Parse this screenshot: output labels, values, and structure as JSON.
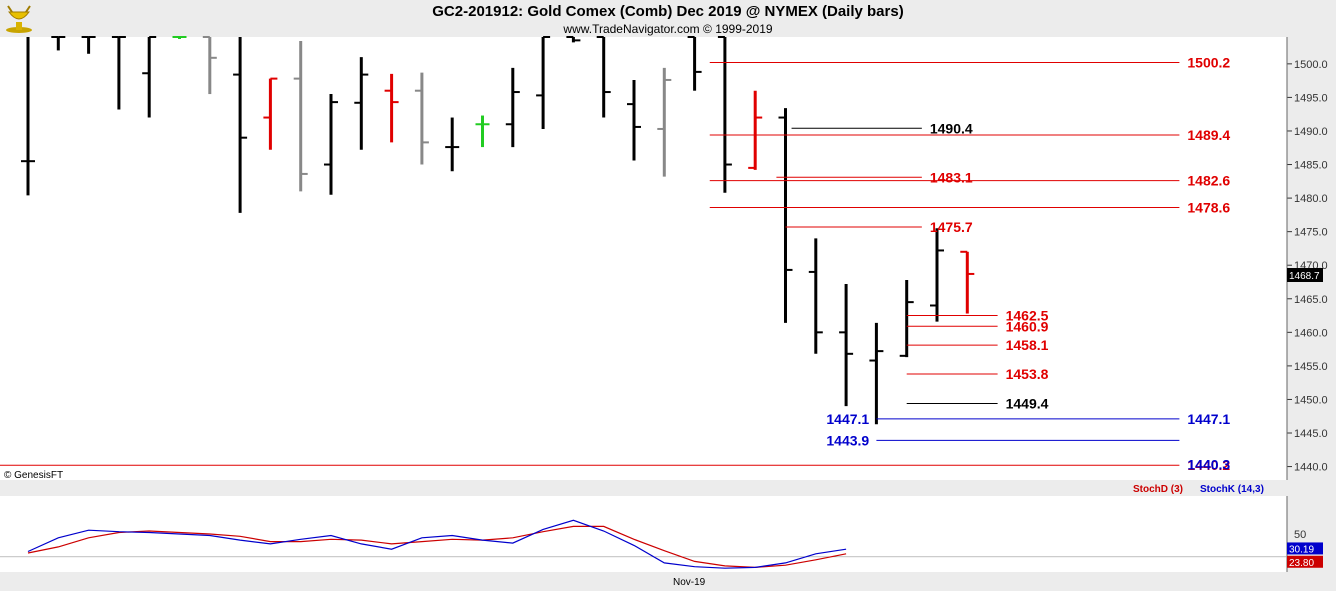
{
  "header": {
    "title": "GC2-201912:  Gold Comex (Comb) Dec 2019 @ NYMEX  (Daily bars)",
    "subtitle": "www.TradeNavigator.com © 1999-2019",
    "logo_icon": "gold-bull-trophy-icon"
  },
  "copyright": "© GenesisFT",
  "last_price_tag": "1468.7",
  "colors": {
    "red": "#e00000",
    "blue": "#0000cc",
    "black": "#000000",
    "gray": "#888888",
    "green": "#22cc22"
  },
  "chart_data": {
    "type": "bar",
    "ylim": [
      1438,
      1504
    ],
    "y_ticks": [
      "1500.0",
      "1495.0",
      "1490.0",
      "1485.0",
      "1480.0",
      "1475.0",
      "1470.0",
      "1465.0",
      "1460.0",
      "1455.0",
      "1450.0",
      "1445.0",
      "1440.0"
    ],
    "x_label": "Nov-19",
    "bars": [
      {
        "h": 1504,
        "l": 1480.4,
        "o": 1485.5,
        "c": 1485.5,
        "color": "black"
      },
      {
        "h": 1504,
        "l": 1502,
        "o": 1504,
        "c": 1504,
        "color": "black"
      },
      {
        "h": 1504,
        "l": 1501.5,
        "o": 1504,
        "c": 1504,
        "color": "black"
      },
      {
        "h": 1504,
        "l": 1493.2,
        "o": 1504,
        "c": 1504,
        "color": "black"
      },
      {
        "h": 1504,
        "l": 1492,
        "o": 1498.6,
        "c": 1504,
        "color": "black"
      },
      {
        "h": 1504,
        "l": 1503.7,
        "o": 1504,
        "c": 1504,
        "color": "green"
      },
      {
        "h": 1504,
        "l": 1495.5,
        "o": 1504,
        "c": 1500.9,
        "color": "gray"
      },
      {
        "h": 1504,
        "l": 1477.8,
        "o": 1498.4,
        "c": 1489,
        "color": "black"
      },
      {
        "h": 1497.8,
        "l": 1487.2,
        "o": 1492,
        "c": 1497.8,
        "color": "red"
      },
      {
        "h": 1503.4,
        "l": 1481,
        "o": 1497.8,
        "c": 1483.6,
        "color": "gray"
      },
      {
        "h": 1495.5,
        "l": 1480.5,
        "o": 1485,
        "c": 1494.3,
        "color": "black"
      },
      {
        "h": 1501,
        "l": 1487.2,
        "o": 1494.2,
        "c": 1498.4,
        "color": "black"
      },
      {
        "h": 1498.5,
        "l": 1488.3,
        "o": 1496,
        "c": 1494.3,
        "color": "red"
      },
      {
        "h": 1498.7,
        "l": 1485,
        "o": 1496,
        "c": 1488.3,
        "color": "gray"
      },
      {
        "h": 1492,
        "l": 1484,
        "o": 1487.6,
        "c": 1487.6,
        "color": "black"
      },
      {
        "h": 1492.3,
        "l": 1487.6,
        "o": 1491,
        "c": 1491,
        "color": "green"
      },
      {
        "h": 1499.4,
        "l": 1487.6,
        "o": 1491,
        "c": 1495.8,
        "color": "black"
      },
      {
        "h": 1504,
        "l": 1490.3,
        "o": 1495.3,
        "c": 1504,
        "color": "black"
      },
      {
        "h": 1504,
        "l": 1503.2,
        "o": 1504,
        "c": 1503.5,
        "color": "black"
      },
      {
        "h": 1504,
        "l": 1492,
        "o": 1504,
        "c": 1495.8,
        "color": "black"
      },
      {
        "h": 1497.6,
        "l": 1485.6,
        "o": 1494,
        "c": 1490.6,
        "color": "black"
      },
      {
        "h": 1499.4,
        "l": 1483.2,
        "o": 1490.3,
        "c": 1497.6,
        "color": "gray"
      },
      {
        "h": 1504,
        "l": 1496,
        "o": 1504,
        "c": 1498.8,
        "color": "black"
      },
      {
        "h": 1504,
        "l": 1480.8,
        "o": 1504,
        "c": 1485,
        "color": "black"
      },
      {
        "h": 1496,
        "l": 1484.2,
        "o": 1484.5,
        "c": 1492,
        "color": "red"
      },
      {
        "h": 1493.4,
        "l": 1461.4,
        "o": 1492,
        "c": 1469.3,
        "color": "black"
      },
      {
        "h": 1474,
        "l": 1456.8,
        "o": 1469,
        "c": 1460,
        "color": "black"
      },
      {
        "h": 1467.2,
        "l": 1449,
        "o": 1460,
        "c": 1456.8,
        "color": "black"
      },
      {
        "h": 1461.4,
        "l": 1446.3,
        "o": 1455.8,
        "c": 1457.2,
        "color": "black"
      },
      {
        "h": 1467.8,
        "l": 1456.3,
        "o": 1456.5,
        "c": 1464.5,
        "color": "black"
      },
      {
        "h": 1475.5,
        "l": 1461.6,
        "o": 1464,
        "c": 1472.2,
        "color": "black"
      },
      {
        "h": 1472,
        "l": 1462.8,
        "o": 1472,
        "c": 1468.7,
        "color": "red"
      }
    ],
    "levels": [
      {
        "value": 1500.2,
        "label": "1500.2",
        "color": "red",
        "x0": 22.5,
        "x1": 38,
        "label_pos": "right"
      },
      {
        "value": 1490.4,
        "label": "1490.4",
        "color": "black",
        "x0": 25.2,
        "x1": 29.5,
        "label_pos": "right"
      },
      {
        "value": 1489.4,
        "label": "1489.4",
        "color": "red",
        "x0": 22.5,
        "x1": 38,
        "label_pos": "right"
      },
      {
        "value": 1483.1,
        "label": "1483.1",
        "color": "red",
        "x0": 24.7,
        "x1": 29.5,
        "label_pos": "right"
      },
      {
        "value": 1482.6,
        "label": "1482.6",
        "color": "red",
        "x0": 22.5,
        "x1": 38,
        "label_pos": "right"
      },
      {
        "value": 1478.6,
        "label": "1478.6",
        "color": "red",
        "x0": 22.5,
        "x1": 38,
        "label_pos": "right"
      },
      {
        "value": 1475.7,
        "label": "1475.7",
        "color": "red",
        "x0": 25,
        "x1": 29.5,
        "label_pos": "right"
      },
      {
        "value": 1462.5,
        "label": "1462.5",
        "color": "red",
        "x0": 29,
        "x1": 32,
        "label_pos": "right"
      },
      {
        "value": 1460.9,
        "label": "1460.9",
        "color": "red",
        "x0": 29,
        "x1": 32,
        "label_pos": "right"
      },
      {
        "value": 1458.1,
        "label": "1458.1",
        "color": "red",
        "x0": 29,
        "x1": 32,
        "label_pos": "right"
      },
      {
        "value": 1453.8,
        "label": "1453.8",
        "color": "red",
        "x0": 29,
        "x1": 32,
        "label_pos": "right"
      },
      {
        "value": 1449.4,
        "label": "1449.4",
        "color": "black",
        "x0": 29,
        "x1": 32,
        "label_pos": "right"
      },
      {
        "value": 1447.1,
        "label": "1447.1",
        "color": "blue",
        "x0": 28,
        "x1": 38,
        "label_pos": "both"
      },
      {
        "value": 1443.9,
        "label": "1443.9",
        "color": "blue",
        "x0": 28,
        "x1": 38,
        "label_pos": "left"
      },
      {
        "value": 1440.2,
        "label": "1440.2",
        "color": "red",
        "x0": -1,
        "x1": 38,
        "label_pos": "right"
      },
      {
        "value": 1440.3,
        "label": "1440.3",
        "color": "blue",
        "x0": 38,
        "x1": 38,
        "label_pos": "right"
      }
    ],
    "stoch": {
      "ylim": [
        0,
        100
      ],
      "tick": "50",
      "stochD_label": "StochD (3)",
      "stochK_label": "StochK (14,3)",
      "stochD_value": "23.80",
      "stochK_value": "30.19",
      "k": [
        27,
        45,
        55,
        53,
        52,
        50,
        48,
        42,
        37,
        43,
        48,
        37,
        30,
        45,
        48,
        42,
        38,
        56,
        68,
        54,
        35,
        12,
        7,
        5,
        6,
        12,
        24,
        30
      ],
      "d": [
        25,
        33,
        45,
        52,
        54,
        52,
        50,
        47,
        40,
        40,
        43,
        42,
        37,
        40,
        43,
        42,
        45,
        53,
        60,
        60,
        43,
        28,
        14,
        8,
        6,
        9,
        16,
        24
      ]
    }
  }
}
